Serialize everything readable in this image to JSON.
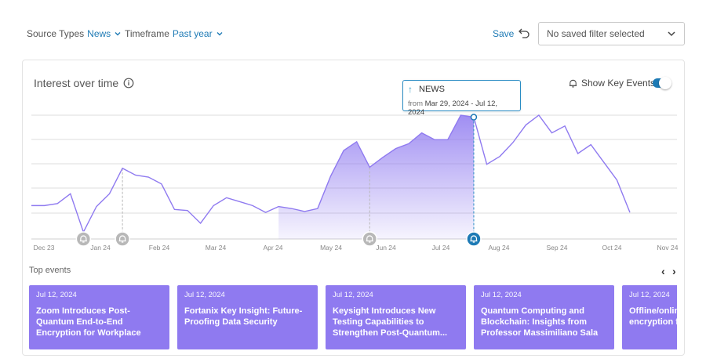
{
  "filters": {
    "source_label": "Source Types",
    "source_value": "News",
    "timeframe_label": "Timeframe",
    "timeframe_value": "Past year"
  },
  "toolbar": {
    "save_label": "Save",
    "saved_filter_placeholder": "No saved filter selected"
  },
  "chart": {
    "title": "Interest over time",
    "show_key_events_label": "Show Key Events",
    "show_key_events_on": true,
    "accent_color": "#8f7af0",
    "highlight_color": "#1d7ab5"
  },
  "tooltip": {
    "label": "NEWS",
    "from_label": "from",
    "range": "Mar 29, 2024 - Jul 12, 2024"
  },
  "chart_data": {
    "type": "line",
    "x_ticks": [
      "Dec 23",
      "Jan 24",
      "Feb 24",
      "Mar 24",
      "Apr 24",
      "May 24",
      "Jun 24",
      "Jul 24",
      "Aug 24",
      "Sep 24",
      "Oct 24",
      "Nov 24"
    ],
    "values": [
      34,
      34,
      36,
      46,
      7,
      33,
      46,
      72,
      65,
      63,
      56,
      30,
      29,
      16,
      34,
      42,
      38,
      34,
      27,
      33,
      31,
      28,
      31,
      64,
      90,
      99,
      73,
      83,
      92,
      97,
      108,
      101,
      101,
      126,
      124,
      76,
      84,
      98,
      116,
      126,
      108,
      115,
      87,
      96,
      78,
      60,
      27
    ],
    "highlight_range": [
      19,
      34
    ],
    "highlight_point": 34,
    "key_event_points": [
      4,
      7,
      26,
      34
    ],
    "grid": true
  },
  "top_events": {
    "label": "Top events",
    "items": [
      {
        "date": "Jul 12, 2024",
        "title": "Zoom Introduces Post-Quantum End-to-End Encryption for Workplace"
      },
      {
        "date": "Jul 12, 2024",
        "title": "Fortanix Key Insight: Future-Proofing Data Security"
      },
      {
        "date": "Jul 12, 2024",
        "title": "Keysight Introduces New Testing Capabilities to Strengthen Post-Quantum..."
      },
      {
        "date": "Jul 12, 2024",
        "title": "Quantum Computing and Blockchain: Insights from Professor Massimiliano Sala"
      },
      {
        "date": "Jul 12, 2024",
        "title": "Offline/online searchable encryption from ideal lattices"
      }
    ]
  }
}
